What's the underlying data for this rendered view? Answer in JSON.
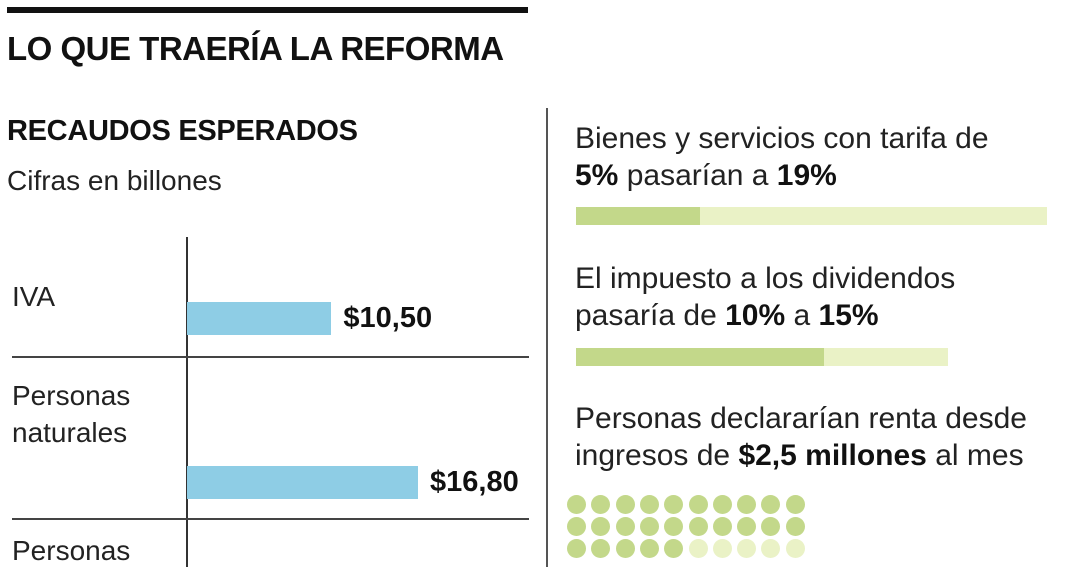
{
  "header": {
    "title": "LO QUE TRAERÍA LA REFORMA"
  },
  "chart_data": {
    "type": "bar",
    "orientation": "horizontal",
    "title": "RECAUDOS ESPERADOS",
    "subtitle": "Cifras en billones",
    "categories": [
      "IVA",
      "Personas naturales",
      "Personas"
    ],
    "values": [
      10.5,
      16.8,
      null
    ],
    "value_labels": [
      "$10,50",
      "$16,80",
      ""
    ],
    "xlim": [
      0,
      16.8
    ],
    "bar_color": "#8ecde5",
    "grid": false
  },
  "facts": [
    {
      "pre": "Bienes y servicios con tarifa de",
      "v1": "5%",
      "mid": " pasarían a ",
      "v2": "19%",
      "from": 5,
      "to": 19
    },
    {
      "pre": "El impuesto a los dividendos",
      "mid0": "pasaría de ",
      "v1": "10%",
      "mid": " a ",
      "v2": "15%",
      "from": 10,
      "to": 15
    },
    {
      "pre": "Personas declararían renta desde",
      "mid0": "ingresos de ",
      "v1": "$2,5 millones",
      "post": " al mes"
    }
  ],
  "dot_grid": {
    "total": 30,
    "filled": 25,
    "filled_color": "#c3d88a",
    "empty_color": "#eaf2c6"
  },
  "colors": {
    "bar": "#8ecde5",
    "progress_fill": "#c3d88a",
    "progress_track": "#eaf2c6"
  }
}
